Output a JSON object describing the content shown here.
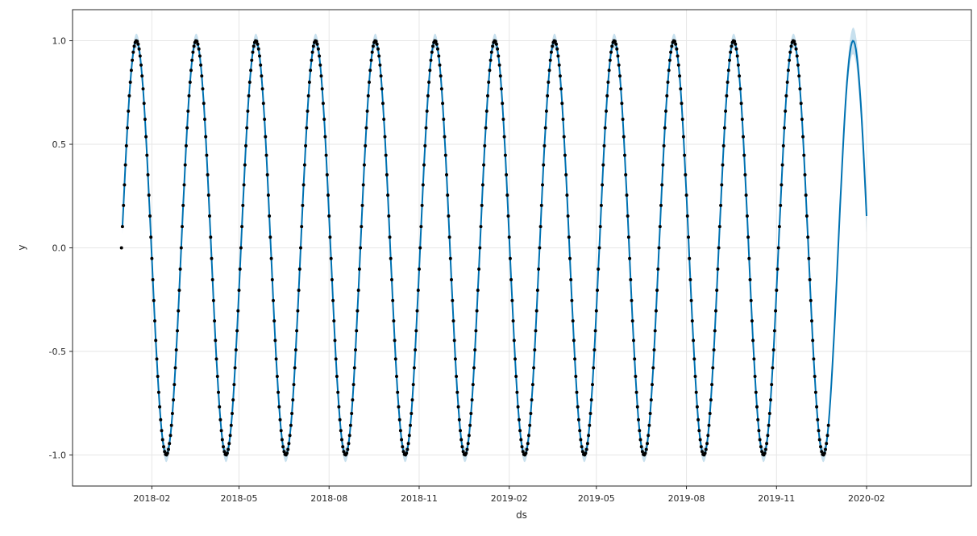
{
  "chart_data": {
    "type": "line",
    "subtype": "forecast-plot-with-scatter-observations-and-uncertainty-band",
    "title": "",
    "xlabel": "ds",
    "ylabel": "y",
    "x_tick_labels": [
      "2018-02",
      "2018-05",
      "2018-08",
      "2018-11",
      "2019-02",
      "2019-05",
      "2019-08",
      "2019-11",
      "2020-02"
    ],
    "x_tick_days": [
      31,
      120,
      212,
      304,
      396,
      485,
      577,
      669,
      761
    ],
    "y_tick_labels": [
      "1.0",
      "0.5",
      "0.0",
      "-0.5",
      "-1.0"
    ],
    "y_tick_values": [
      1.0,
      0.5,
      0.0,
      -0.5,
      -1.0
    ],
    "xlim_days": [
      -50,
      868
    ],
    "ylim": [
      -1.15,
      1.15
    ],
    "grid": true,
    "grid_color": "#e6e6e6",
    "spine_color": "#262626",
    "start_date": "2018-01-01",
    "observed_end_date": "2019-12-24",
    "forecast_end_date": "2020-02-01",
    "series": [
      {
        "name": "observed",
        "style": "scatter",
        "color": "#000000",
        "marker_radius": 2,
        "generator": {
          "formula": "y = amplitude * sin(2*pi*t/period_days), t = days since start_date",
          "t_start": 0,
          "t_end": 722,
          "step_days": 1,
          "period_days": 61,
          "amplitude": 1.0
        }
      },
      {
        "name": "forecast_yhat",
        "style": "line",
        "color": "#0072B2",
        "line_width": 2,
        "generator": {
          "formula": "y = amplitude * sin(2*pi*t/period_days), t = days since start_date",
          "t_start": 1,
          "t_end": 761,
          "step_days": 1,
          "period_days": 61,
          "amplitude": 1.0
        }
      },
      {
        "name": "uncertainty_band",
        "style": "band",
        "color": "rgba(0,114,178,0.22)",
        "halfwidth_history": 0.035,
        "halfwidth_forecast_end": 0.08,
        "history_end_t": 722
      }
    ],
    "legend": null
  }
}
